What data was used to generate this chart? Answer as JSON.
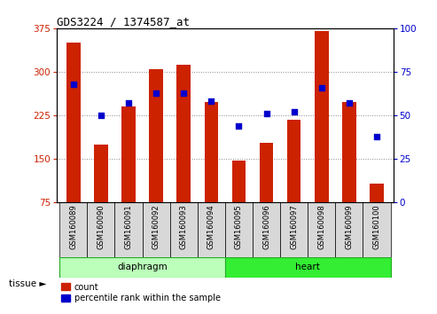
{
  "title": "GDS3224 / 1374587_at",
  "samples": [
    "GSM160089",
    "GSM160090",
    "GSM160091",
    "GSM160092",
    "GSM160093",
    "GSM160094",
    "GSM160095",
    "GSM160096",
    "GSM160097",
    "GSM160098",
    "GSM160099",
    "GSM160100"
  ],
  "counts": [
    350,
    175,
    240,
    305,
    312,
    248,
    148,
    178,
    218,
    370,
    248,
    108
  ],
  "percentiles": [
    68,
    50,
    57,
    63,
    63,
    58,
    44,
    51,
    52,
    66,
    57,
    38
  ],
  "ylim_left": [
    75,
    375
  ],
  "ylim_right": [
    0,
    100
  ],
  "yticks_left": [
    75,
    150,
    225,
    300,
    375
  ],
  "yticks_right": [
    0,
    25,
    50,
    75,
    100
  ],
  "bar_color": "#cc2200",
  "dot_color": "#0000cc",
  "bar_width": 0.5,
  "groups": [
    {
      "label": "diaphragm",
      "start": 0,
      "end": 5,
      "color": "#bbffbb",
      "border_color": "#22aa22"
    },
    {
      "label": "heart",
      "start": 6,
      "end": 11,
      "color": "#33ee33",
      "border_color": "#22aa22"
    }
  ],
  "tissue_label": "tissue",
  "legend_count_label": "count",
  "legend_pct_label": "percentile rank within the sample",
  "grid_color": "#888888",
  "tick_label_color_left": "#cc2200",
  "tick_label_color_right": "#0000cc",
  "bg_color": "#ffffff",
  "plot_bg_color": "#ffffff",
  "xlabel_tick_bg": "#d8d8d8"
}
